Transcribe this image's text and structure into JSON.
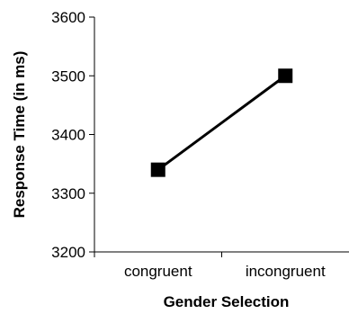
{
  "chart_data": {
    "type": "line",
    "categories": [
      "congruent",
      "incongruent"
    ],
    "series": [
      {
        "values": [
          3340,
          3500
        ]
      }
    ],
    "xlabel": "Gender Selection",
    "ylabel": "Response Time (in ms)",
    "ylim": [
      3200,
      3600
    ],
    "yticks": [
      3200,
      3300,
      3400,
      3500,
      3600
    ],
    "grid": false,
    "colors": {
      "line": "#000000",
      "marker": "#000000",
      "axis": "#000000"
    }
  }
}
